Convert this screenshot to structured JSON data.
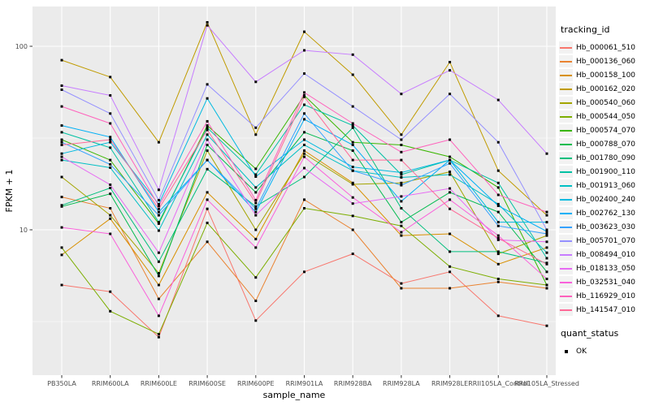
{
  "colors": {
    "panel_bg": "#EBEBEB",
    "grid": "#FFFFFF",
    "tick_mark": "#333333",
    "tick_label": "#4D4D4D",
    "axis_title": "#000000",
    "point": "#000000",
    "legend_key_bg": "#F2F2F2"
  },
  "chart_data": {
    "type": "line",
    "title": "",
    "xlabel": "sample_name",
    "ylabel": "FPKM + 1",
    "y_scale": "log10",
    "y_ticks": [
      100,
      10
    ],
    "y_minor_ticks": [
      31.62,
      3.162
    ],
    "ylim": [
      1.6,
      165
    ],
    "grid": true,
    "legend_position": "right",
    "legend_title": "tracking_id",
    "point_legend": {
      "title": "quant_status",
      "label": "OK"
    },
    "categories": [
      "PB350LA",
      "RRIM600LA",
      "RRIM600LE",
      "RRIM600SE",
      "RRIM600PE",
      "RRIM901LA",
      "RRIM928BA",
      "RRIM928LA",
      "RRIM928LE",
      "RRII105LA_Control",
      "RRII105LA_Stressed"
    ],
    "series": [
      {
        "name": "Hb_000061_510",
        "color": "#F8766D",
        "values": [
          5.0,
          4.6,
          2.6,
          13.0,
          3.2,
          5.9,
          7.4,
          5.1,
          5.9,
          3.4,
          3.0
        ]
      },
      {
        "name": "Hb_000136_060",
        "color": "#EA8331",
        "values": [
          15.1,
          13.1,
          4.2,
          8.6,
          4.1,
          14.6,
          10.0,
          4.8,
          4.8,
          5.2,
          4.8
        ]
      },
      {
        "name": "Hb_000158_100",
        "color": "#D89000",
        "values": [
          7.3,
          11.5,
          5.0,
          16.0,
          8.9,
          27.0,
          18.0,
          9.3,
          9.5,
          6.5,
          8.0
        ]
      },
      {
        "name": "Hb_000162_020",
        "color": "#C09B00",
        "values": [
          84.0,
          68.0,
          30.0,
          135.0,
          33.0,
          120.0,
          70.0,
          33.0,
          82.0,
          21.0,
          12.0
        ]
      },
      {
        "name": "Hb_000540_060",
        "color": "#A3A500",
        "values": [
          19.4,
          12.0,
          5.8,
          27.0,
          10.0,
          26.0,
          17.7,
          18.0,
          20.7,
          7.4,
          9.3
        ]
      },
      {
        "name": "Hb_000544_050",
        "color": "#7CAE00",
        "values": [
          8.0,
          3.6,
          2.7,
          10.9,
          5.5,
          13.1,
          11.9,
          10.5,
          6.3,
          5.4,
          5.0
        ]
      },
      {
        "name": "Hb_000574_070",
        "color": "#39B600",
        "values": [
          31.0,
          24.0,
          10.8,
          37.0,
          21.5,
          54.0,
          30.0,
          29.0,
          25.0,
          17.0,
          5.0
        ]
      },
      {
        "name": "Hb_000788_070",
        "color": "#00BB4E",
        "values": [
          13.4,
          15.7,
          5.6,
          29.0,
          16.0,
          34.0,
          27.0,
          11.0,
          16.0,
          12.5,
          5.9
        ]
      },
      {
        "name": "Hb_001780_090",
        "color": "#00BF7D",
        "values": [
          13.6,
          16.9,
          6.7,
          21.4,
          13.4,
          19.4,
          36.0,
          13.1,
          7.6,
          7.6,
          6.6
        ]
      },
      {
        "name": "Hb_001900_110",
        "color": "#00C1A3",
        "values": [
          34.0,
          28.0,
          11.0,
          36.0,
          20.0,
          48.0,
          37.0,
          20.0,
          24.0,
          18.0,
          7.0
        ]
      },
      {
        "name": "Hb_001913_060",
        "color": "#00BFC4",
        "values": [
          24.0,
          21.8,
          9.9,
          33.0,
          17.0,
          29.0,
          21.0,
          19.3,
          20.0,
          13.8,
          7.5
        ]
      },
      {
        "name": "Hb_002400_240",
        "color": "#00BAE0",
        "values": [
          26.0,
          30.0,
          13.8,
          52.0,
          19.5,
          31.0,
          22.0,
          20.5,
          24.0,
          11.0,
          11.0
        ]
      },
      {
        "name": "Hb_002762_130",
        "color": "#00B0F6",
        "values": [
          37.0,
          32.0,
          12.5,
          24.0,
          12.5,
          40.0,
          29.0,
          14.3,
          24.0,
          13.5,
          9.8
        ]
      },
      {
        "name": "Hb_003623_030",
        "color": "#35A2FF",
        "values": [
          30.0,
          22.7,
          12.0,
          24.0,
          13.0,
          43.0,
          21.0,
          17.5,
          23.0,
          10.5,
          9.5
        ]
      },
      {
        "name": "Hb_005701_070",
        "color": "#9590FF",
        "values": [
          58.0,
          43.0,
          14.5,
          62.0,
          36.0,
          71.0,
          47.0,
          31.0,
          55.0,
          30.0,
          10.0
        ]
      },
      {
        "name": "Hb_008494_010",
        "color": "#C77CFF",
        "values": [
          61.0,
          54.0,
          16.5,
          130.0,
          64.0,
          95.0,
          90.0,
          55.0,
          74.0,
          51.0,
          26.0
        ]
      },
      {
        "name": "Hb_018133_050",
        "color": "#E76BF3",
        "values": [
          25.0,
          17.6,
          7.5,
          31.0,
          12.0,
          21.7,
          13.9,
          15.2,
          16.8,
          8.8,
          8.6
        ]
      },
      {
        "name": "Hb_032531_040",
        "color": "#FA62DB",
        "values": [
          10.3,
          9.5,
          3.4,
          14.6,
          8.0,
          25.0,
          15.0,
          9.7,
          14.6,
          9.3,
          5.4
        ]
      },
      {
        "name": "Hb_116929_010",
        "color": "#FF62BC",
        "values": [
          47.0,
          38.0,
          13.5,
          39.0,
          14.5,
          56.0,
          38.0,
          26.5,
          31.0,
          15.5,
          12.5
        ]
      },
      {
        "name": "Hb_141547_010",
        "color": "#FF6A98",
        "values": [
          29.0,
          31.0,
          13.0,
          35.0,
          14.0,
          53.0,
          24.0,
          24.0,
          13.0,
          9.0,
          6.5
        ]
      }
    ]
  }
}
